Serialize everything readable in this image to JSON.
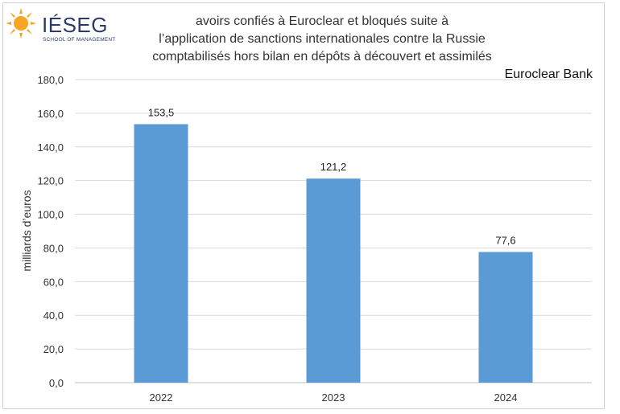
{
  "logo": {
    "name": "IÉSEG",
    "tagline": "SCHOOL OF MANAGEMENT"
  },
  "header": {
    "title_lines": [
      "avoirs confiés à Euroclear et bloqués suite à",
      "l’application de sanctions internationales contre la Russie",
      "comptabilisés hors bilan en dépôts à découvert et assimilés"
    ],
    "corner_label": "Euroclear Bank"
  },
  "colors": {
    "bar": "#5b9bd5",
    "grid": "#d9d9d9",
    "text": "#333333"
  },
  "chart_data": {
    "type": "bar",
    "categories": [
      "2022",
      "2023",
      "2024"
    ],
    "values": [
      153.5,
      121.2,
      77.6
    ],
    "value_labels": [
      "153,5",
      "121,2",
      "77,6"
    ],
    "ylabel": "milliards d’euros",
    "xlabel": "",
    "ylim": [
      0,
      180
    ],
    "yticks": [
      "0,0",
      "20,0",
      "40,0",
      "60,0",
      "80,0",
      "100,0",
      "120,0",
      "140,0",
      "160,0",
      "180,0"
    ],
    "grid": true,
    "legend": "none"
  }
}
